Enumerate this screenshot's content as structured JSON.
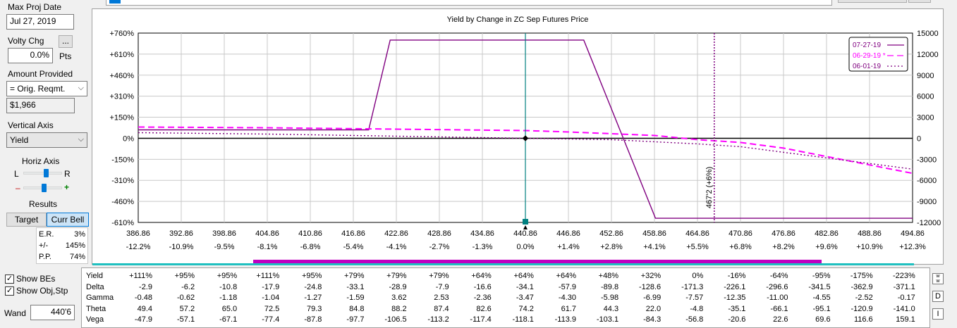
{
  "left_panel": {
    "max_proj_date_label": "Max Proj Date",
    "max_proj_date_value": "Jul 27, 2019",
    "volty_chg_label": "Volty Chg",
    "volty_chg_button": "...",
    "volty_chg_value": "0.0%",
    "volty_chg_unit": "Pts",
    "amount_provided_label": "Amount Provided",
    "amount_provided_option": "= Orig. Reqmt.",
    "amount_value": "$1,966",
    "vertical_axis_label": "Vertical Axis",
    "vertical_axis_option": "Yield",
    "horiz_axis_label": "Horiz Axis",
    "horiz_left": "L",
    "horiz_right": "R",
    "zoom_minus": "–",
    "zoom_plus": "+",
    "horiz_slider_level": 0.6,
    "zoom_slider_level": 0.55,
    "results_label": "Results",
    "target_button": "Target",
    "curr_bell_button": "Curr Bell",
    "stats": [
      {
        "label": "E.R.",
        "value": "3%"
      },
      {
        "label": "+/-",
        "value": "145%"
      },
      {
        "label": "P.P.",
        "value": "74%"
      }
    ],
    "show_bes_label": "Show BEs",
    "show_obj_label": "Show Obj,Stp",
    "show_bes_checked": true,
    "show_obj_checked": true,
    "wand_label": "Wand",
    "wand_value": "440'6"
  },
  "chart_data": {
    "type": "line",
    "title": "Yield by Change in ZC Sep Futures Price",
    "x_ticks": [
      "386.86",
      "392.86",
      "398.86",
      "404.86",
      "410.86",
      "416.86",
      "422.86",
      "428.86",
      "434.86",
      "440.86",
      "446.86",
      "452.86",
      "458.86",
      "464.86",
      "470.86",
      "476.86",
      "482.86",
      "488.86",
      "494.86"
    ],
    "x_pct_ticks": [
      "-12.2%",
      "-10.9%",
      "-9.5%",
      "-8.1%",
      "-6.8%",
      "-5.4%",
      "-4.1%",
      "-2.7%",
      "-1.3%",
      "0.0%",
      "+1.4%",
      "+2.8%",
      "+4.1%",
      "+5.5%",
      "+6.8%",
      "+8.2%",
      "+9.6%",
      "+10.9%",
      "+12.3%"
    ],
    "xlim": [
      386.86,
      494.86
    ],
    "y_left_ticks": [
      "+760%",
      "+610%",
      "+460%",
      "+310%",
      "+150%",
      "0%",
      "-150%",
      "-310%",
      "-460%",
      "-610%"
    ],
    "y_left_lim": [
      -610,
      760
    ],
    "y_right_ticks": [
      "15000",
      "12000",
      "9000",
      "6000",
      "3000",
      "0",
      "-3000",
      "-6000",
      "-9000",
      "-12000"
    ],
    "y_right_lim": [
      -12000,
      15000
    ],
    "grid": true,
    "legend_position": "top-right",
    "colors": {
      "series1": "#800080",
      "series2": "#ff00ff",
      "series3": "#800080",
      "current": "#008080",
      "marker": "#008080"
    },
    "series": [
      {
        "name": "07-27-19",
        "style": "solid",
        "x": [
          386.86,
          419.0,
          422.0,
          449.0,
          459.0,
          494.86
        ],
        "y": [
          60,
          60,
          700,
          700,
          -570,
          -570
        ]
      },
      {
        "name": "06-29-19 *",
        "style": "dashed",
        "x": [
          386.86,
          404.86,
          422.86,
          440.86,
          446.86,
          458.86,
          464.86,
          470.86,
          476.86,
          482.86,
          488.86,
          494.86
        ],
        "y": [
          80,
          75,
          65,
          55,
          45,
          20,
          -10,
          -30,
          -70,
          -130,
          -190,
          -250
        ]
      },
      {
        "name": "06-01-19",
        "style": "dotted",
        "x": [
          386.86,
          404.86,
          422.86,
          440.86,
          452.86,
          464.86,
          470.86,
          476.86,
          482.86,
          488.86,
          494.86
        ],
        "y": [
          40,
          30,
          15,
          0,
          -10,
          -40,
          -60,
          -100,
          -140,
          -180,
          -220
        ]
      }
    ],
    "current_price": 440.86,
    "annotation": {
      "x": 467.2,
      "label": "467'2 (+6%)"
    }
  },
  "greeks": {
    "rows": [
      {
        "name": "Yield",
        "values": [
          "+111%",
          "+95%",
          "+95%",
          "+111%",
          "+95%",
          "+79%",
          "+79%",
          "+79%",
          "+64%",
          "+64%",
          "+64%",
          "+48%",
          "+32%",
          "0%",
          "-16%",
          "-64%",
          "-95%",
          "-175%",
          "-223%"
        ]
      },
      {
        "name": "Delta",
        "values": [
          "-2.9",
          "-6.2",
          "-10.8",
          "-17.9",
          "-24.8",
          "-33.1",
          "-28.9",
          "-7.9",
          "-16.6",
          "-34.1",
          "-57.9",
          "-89.8",
          "-128.6",
          "-171.3",
          "-226.1",
          "-296.6",
          "-341.5",
          "-362.9",
          "-371.1"
        ]
      },
      {
        "name": "Gamma",
        "values": [
          "-0.48",
          "-0.62",
          "-1.18",
          "-1.04",
          "-1.27",
          "-1.59",
          "3.62",
          "2.53",
          "-2.36",
          "-3.47",
          "-4.30",
          "-5.98",
          "-6.99",
          "-7.57",
          "-12.35",
          "-11.00",
          "-4.55",
          "-2.52",
          "-0.17"
        ]
      },
      {
        "name": "Theta",
        "values": [
          "49.4",
          "57.2",
          "65.0",
          "72.5",
          "79.3",
          "84.8",
          "88.2",
          "87.4",
          "82.6",
          "74.2",
          "61.7",
          "44.3",
          "22.0",
          "-4.8",
          "-35.1",
          "-66.1",
          "-95.1",
          "-120.9",
          "-141.0"
        ]
      },
      {
        "name": "Vega",
        "values": [
          "-47.9",
          "-57.1",
          "-67.1",
          "-77.4",
          "-87.8",
          "-97.7",
          "-106.5",
          "-113.2",
          "-117.4",
          "-118.1",
          "-113.9",
          "-103.1",
          "-84.3",
          "-56.8",
          "-20.6",
          "22.6",
          "69.6",
          "116.6",
          "159.1"
        ]
      }
    ],
    "side_buttons": [
      "w\nw",
      "D",
      "I"
    ]
  }
}
